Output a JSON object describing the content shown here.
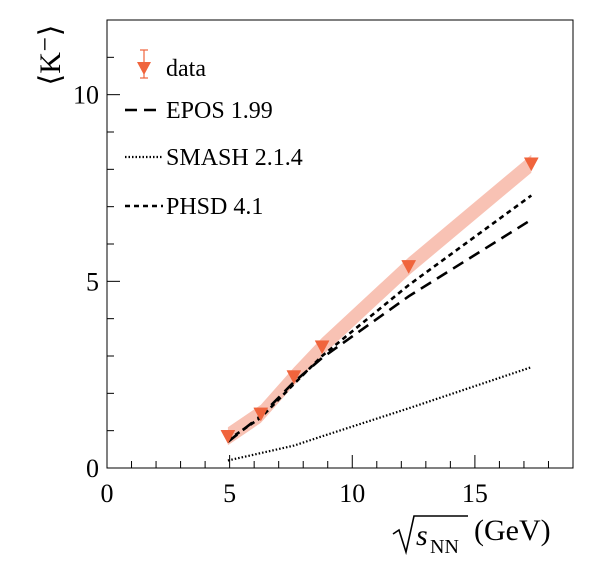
{
  "chart_data": {
    "type": "line",
    "xlabel": "(GeV)",
    "ylabel": "⟨K⁻⟩",
    "xlim": [
      0,
      19
    ],
    "ylim": [
      0,
      12
    ],
    "x_ticks": [
      0,
      5,
      10,
      15
    ],
    "y_ticks": [
      0,
      5,
      10
    ],
    "legend": {
      "position": "top-left"
    },
    "colors": {
      "data": "#f0643c",
      "band": "#f8c2b4",
      "model": "#000000"
    },
    "series": [
      {
        "name": "data",
        "style": "markers",
        "x": [
          4.93,
          6.27,
          7.62,
          8.77,
          12.3,
          17.3
        ],
        "y": [
          0.85,
          1.45,
          2.45,
          3.25,
          5.4,
          8.15
        ]
      },
      {
        "name": "EPOS 1.99",
        "style": "long-dash",
        "x": [
          4.93,
          6.27,
          7.62,
          8.77,
          12.3,
          17.3
        ],
        "y": [
          0.7,
          1.4,
          2.3,
          2.95,
          4.6,
          6.65
        ]
      },
      {
        "name": "SMASH 2.1.4",
        "style": "dotted",
        "x": [
          4.93,
          6.27,
          7.62,
          8.77,
          12.3,
          17.3
        ],
        "y": [
          0.2,
          0.4,
          0.6,
          0.85,
          1.6,
          2.7
        ]
      },
      {
        "name": "PHSD 4.1",
        "style": "short-dash",
        "x": [
          4.93,
          6.27,
          7.62,
          8.77,
          12.3,
          17.3
        ],
        "y": [
          0.75,
          1.35,
          2.25,
          3.0,
          4.9,
          7.3
        ]
      }
    ]
  }
}
